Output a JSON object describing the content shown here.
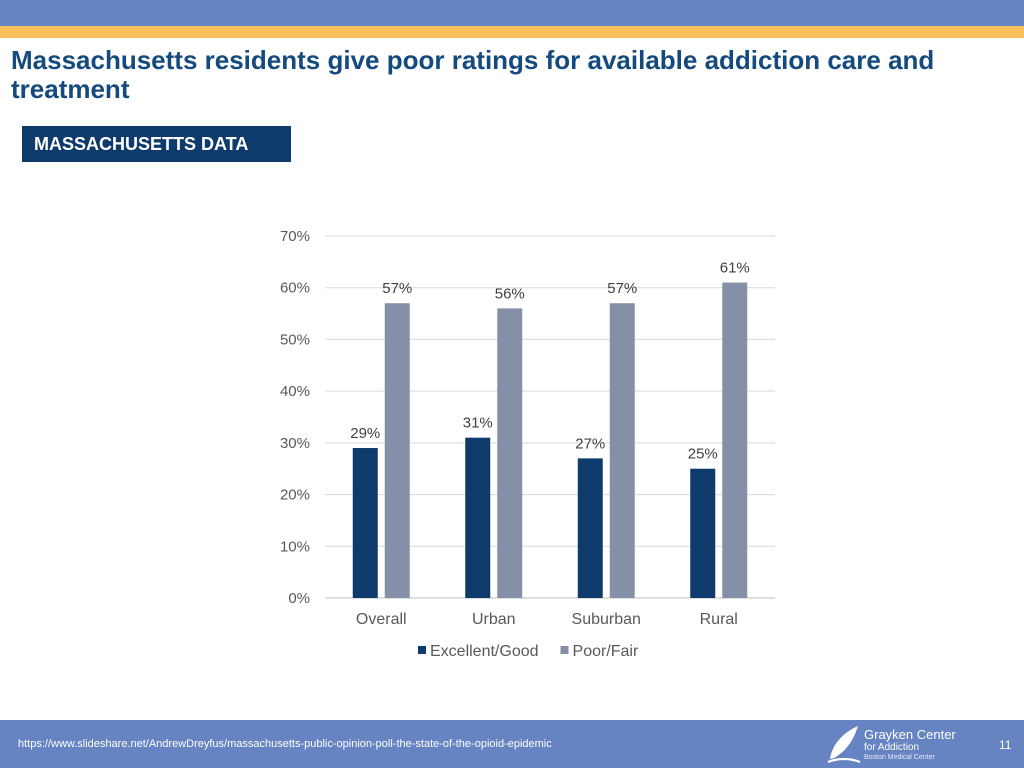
{
  "slide": {
    "title": "Massachusetts residents give poor ratings for available addiction care and treatment",
    "badge": "MASSACHUSETTS DATA",
    "colors": {
      "top_band": "#6683c2",
      "accent_stripe": "#f8c05c",
      "title": "#144a7d",
      "badge": "#0e3b6c"
    }
  },
  "chart_data": {
    "type": "bar",
    "categories": [
      "Overall",
      "Urban",
      "Suburban",
      "Rural"
    ],
    "series": [
      {
        "name": "Excellent/Good",
        "values": [
          29,
          31,
          27,
          25
        ],
        "labels": [
          "29%",
          "31%",
          "27%",
          "25%"
        ],
        "color": "#0e3b6c"
      },
      {
        "name": "Poor/Fair",
        "values": [
          57,
          56,
          57,
          61
        ],
        "labels": [
          "57%",
          "56%",
          "57%",
          "61%"
        ],
        "color": "#8590a8"
      }
    ],
    "yticks": [
      "0%",
      "10%",
      "20%",
      "30%",
      "40%",
      "50%",
      "60%",
      "70%"
    ],
    "ylim": [
      0,
      70
    ],
    "grid": true,
    "legend": "bottom",
    "title": "",
    "xlabel": "",
    "ylabel": ""
  },
  "footer": {
    "source": "https://www.slideshare.net/AndrewDreyfus/massachusetts-public-opinion-poll-the-state-of-the-opioid-epidemic",
    "logo_name": "Grayken Center",
    "logo_line2": "for Addiction",
    "logo_line3": "Boston Medical Center",
    "page_number": "11",
    "logo_icon": "leaf-flame-icon"
  }
}
